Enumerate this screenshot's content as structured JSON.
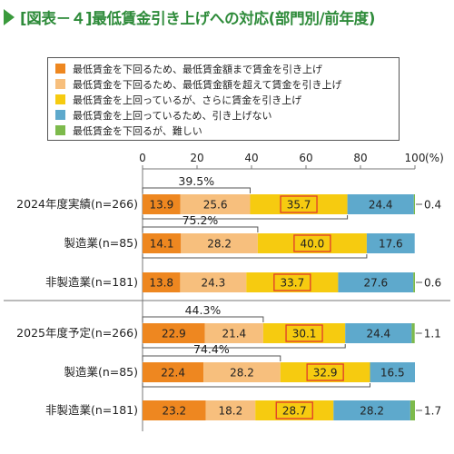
{
  "title": "[図表－４]最低賃金引き上げへの対応(部門別/前年度)",
  "legend": [
    {
      "label": "最低賃金を下回るため、最低賃金額まで賃金を引き上げ",
      "color": "#ee8720"
    },
    {
      "label": "最低賃金を下回るため、最低賃金額を超えて賃金を引き上げ",
      "color": "#f7bf7d"
    },
    {
      "label": "最低賃金を上回っているが、さらに賃金を引き上げ",
      "color": "#f6cb10"
    },
    {
      "label": "最低賃金を上回っているため、引き上げない",
      "color": "#5ea9cc"
    },
    {
      "label": "最低賃金を下回るが、難しい",
      "color": "#7dba4c"
    }
  ],
  "chart_data": {
    "type": "bar",
    "orientation": "horizontal",
    "stacked": true,
    "xlim": [
      0,
      100
    ],
    "xticks": [
      "0",
      "20",
      "40",
      "60",
      "80",
      "100"
    ],
    "unit_label": "(%)",
    "categories": [
      "2024年度実績(n=266)",
      "製造業(n=85)",
      "非製造業(n=181)",
      "2025年度予定(n=266)",
      "製造業(n=85)",
      "非製造業(n=181)"
    ],
    "series": [
      {
        "name": "最低賃金を下回るため、最低賃金額まで賃金を引き上げ",
        "values": [
          13.9,
          14.1,
          13.8,
          22.9,
          22.4,
          23.2
        ]
      },
      {
        "name": "最低賃金を下回るため、最低賃金額を超えて賃金を引き上げ",
        "values": [
          25.6,
          28.2,
          24.3,
          21.4,
          28.2,
          18.2
        ]
      },
      {
        "name": "最低賃金を上回っているが、さらに賃金を引き上げ",
        "values": [
          35.7,
          40.0,
          33.7,
          30.1,
          32.9,
          28.7
        ]
      },
      {
        "name": "最低賃金を上回っているため、引き上げない",
        "values": [
          24.4,
          17.6,
          27.6,
          24.4,
          16.5,
          28.2
        ]
      },
      {
        "name": "最低賃金を下回るが、難しい",
        "values": [
          0.4,
          0.0,
          0.6,
          1.1,
          0.0,
          1.7
        ]
      }
    ],
    "segment_labels": [
      [
        "13.9",
        "25.6",
        "35.7",
        "24.4",
        "0.4"
      ],
      [
        "14.1",
        "28.2",
        "40.0",
        "17.6",
        ""
      ],
      [
        "13.8",
        "24.3",
        "33.7",
        "27.6",
        "0.6"
      ],
      [
        "22.9",
        "21.4",
        "30.1",
        "24.4",
        "1.1"
      ],
      [
        "22.4",
        "28.2",
        "32.9",
        "16.5",
        ""
      ],
      [
        "23.2",
        "18.2",
        "28.7",
        "28.2",
        "1.7"
      ]
    ],
    "subtotals": [
      "39.5%",
      "75.2%",
      "",
      "44.3%",
      "74.4%",
      ""
    ]
  }
}
